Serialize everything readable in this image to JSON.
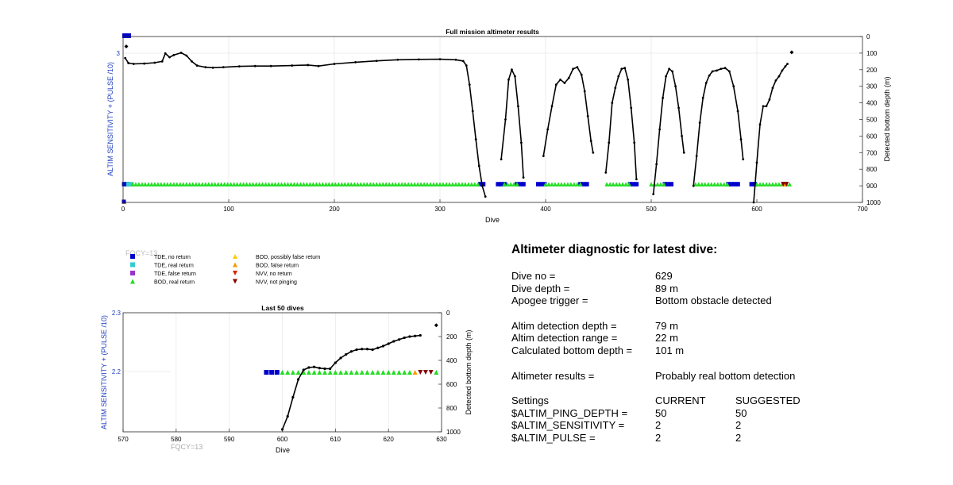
{
  "top_chart": {
    "title": "Full mission altimeter results",
    "xlabel": "Dive",
    "ylabel_left": "ALTIM SENSITIVITY + (PULSE /10)",
    "ylabel_right": "Detected bottom depth (m)",
    "left_tick": "3",
    "x_ticks": [
      "0",
      "100",
      "200",
      "300",
      "400",
      "500",
      "600",
      "700"
    ],
    "right_ticks": [
      "0",
      "100",
      "200",
      "300",
      "400",
      "500",
      "600",
      "700",
      "800",
      "900",
      "1000"
    ]
  },
  "bottom_chart": {
    "title": "Last 50 dives",
    "xlabel": "Dive",
    "ylabel_left": "ALTIM SENSITIVITY + (PULSE /10)",
    "ylabel_right": "Detected bottom depth (m)",
    "left_ticks": [
      "2.3",
      "2.2"
    ],
    "x_ticks": [
      "570",
      "580",
      "590",
      "600",
      "610",
      "620",
      "630"
    ],
    "right_ticks": [
      "0",
      "200",
      "400",
      "600",
      "800",
      "1000"
    ],
    "fqcy_label": "FQCY=13"
  },
  "legend": {
    "fqcy_label": "FQCY=13",
    "items": [
      {
        "label": "TDE, no return",
        "color": "#0000cc",
        "shape": "square"
      },
      {
        "label": "TDE, real return",
        "color": "#33cccc",
        "shape": "square"
      },
      {
        "label": "TDE, false return",
        "color": "#9933cc",
        "shape": "square"
      },
      {
        "label": "BOD, real return",
        "color": "#22dd22",
        "shape": "triangle-up"
      },
      {
        "label": "BOD, possibly false return",
        "color": "#ffcc00",
        "shape": "triangle-up"
      },
      {
        "label": "BOD, false return",
        "color": "#ff9900",
        "shape": "triangle-up"
      },
      {
        "label": "NVV, no return",
        "color": "#dd2200",
        "shape": "triangle-down"
      },
      {
        "label": "NVV, not pinging",
        "color": "#880000",
        "shape": "triangle-down"
      }
    ]
  },
  "diagnostic": {
    "title": "Altimeter diagnostic for latest dive:",
    "dive_no_label": "Dive no =",
    "dive_no": "629",
    "dive_depth_label": "Dive depth =",
    "dive_depth": "89 m",
    "apogee_label": "Apogee trigger =",
    "apogee": "Bottom obstacle detected",
    "det_depth_label": "Altim detection depth =",
    "det_depth": "79 m",
    "det_range_label": "Altim detection range =",
    "det_range": "22 m",
    "calc_depth_label": "Calculated bottom depth =",
    "calc_depth": "101 m",
    "results_label": "Altimeter results =",
    "results": "Probably real bottom detection",
    "settings_label": "Settings",
    "current_label": "CURRENT",
    "suggested_label": "SUGGESTED",
    "ping_label": "$ALTIM_PING_DEPTH =",
    "ping_current": "50",
    "ping_suggested": "50",
    "sens_label": "$ALTIM_SENSITIVITY =",
    "sens_current": "2",
    "sens_suggested": "2",
    "pulse_label": "$ALTIM_PULSE =",
    "pulse_current": "2",
    "pulse_suggested": "2"
  },
  "chart_data": [
    {
      "type": "scatter",
      "title": "Full mission altimeter results",
      "xlabel": "Dive",
      "ylabel": "ALTIM SENSITIVITY + (PULSE /10)",
      "ylabel_right": "Detected bottom depth (m)",
      "xlim": [
        0,
        700
      ],
      "ylim_right": [
        1000,
        0
      ],
      "series": [
        {
          "name": "",
          "kind": "depth-line",
          "color": "#000000",
          "points": [
            [
              2,
              130
            ],
            [
              5,
              160
            ],
            [
              10,
              165
            ],
            [
              20,
              163
            ],
            [
              30,
              158
            ],
            [
              37,
              150
            ],
            [
              40,
              102
            ],
            [
              44,
              125
            ],
            [
              48,
              112
            ],
            [
              55,
              98
            ],
            [
              60,
              115
            ],
            [
              65,
              150
            ],
            [
              70,
              175
            ],
            [
              78,
              185
            ],
            [
              85,
              188
            ],
            [
              95,
              185
            ],
            [
              110,
              180
            ],
            [
              125,
              178
            ],
            [
              140,
              178
            ],
            [
              160,
              175
            ],
            [
              175,
              172
            ],
            [
              185,
              178
            ],
            [
              200,
              165
            ],
            [
              220,
              155
            ],
            [
              240,
              147
            ],
            [
              260,
              140
            ],
            [
              280,
              138
            ],
            [
              300,
              137
            ],
            [
              315,
              140
            ],
            [
              322,
              148
            ],
            [
              325,
              175
            ],
            [
              328,
              290
            ],
            [
              331,
              450
            ],
            [
              334,
              620
            ],
            [
              337,
              780
            ],
            [
              340,
              900
            ],
            [
              343,
              965
            ]
          ]
        },
        {
          "name": "",
          "kind": "depth-line",
          "color": "#000000",
          "points": [
            [
              358,
              740
            ],
            [
              362,
              500
            ],
            [
              365,
              260
            ],
            [
              368,
              200
            ],
            [
              371,
              240
            ],
            [
              374,
              420
            ],
            [
              377,
              640
            ],
            [
              379,
              850
            ]
          ]
        },
        {
          "name": "",
          "kind": "depth-line",
          "color": "#000000",
          "points": [
            [
              398,
              720
            ],
            [
              402,
              560
            ],
            [
              406,
              420
            ],
            [
              410,
              290
            ],
            [
              414,
              260
            ],
            [
              418,
              280
            ],
            [
              422,
              250
            ],
            [
              426,
              195
            ],
            [
              430,
              185
            ],
            [
              434,
              230
            ],
            [
              437,
              330
            ],
            [
              440,
              480
            ],
            [
              443,
              630
            ],
            [
              445,
              700
            ]
          ]
        },
        {
          "name": "",
          "kind": "depth-line",
          "color": "#000000",
          "points": [
            [
              457,
              820
            ],
            [
              460,
              640
            ],
            [
              463,
              400
            ],
            [
              466,
              310
            ],
            [
              469,
              240
            ],
            [
              472,
              195
            ],
            [
              475,
              190
            ],
            [
              478,
              260
            ],
            [
              481,
              430
            ],
            [
              484,
              640
            ],
            [
              486,
              860
            ]
          ]
        },
        {
          "name": "",
          "kind": "depth-line",
          "color": "#000000",
          "points": [
            [
              502,
              950
            ],
            [
              505,
              770
            ],
            [
              508,
              560
            ],
            [
              511,
              370
            ],
            [
              514,
              240
            ],
            [
              517,
              195
            ],
            [
              520,
              210
            ],
            [
              523,
              300
            ],
            [
              526,
              430
            ],
            [
              529,
              600
            ],
            [
              531,
              700
            ]
          ]
        },
        {
          "name": "",
          "kind": "depth-line",
          "color": "#000000",
          "points": [
            [
              540,
              900
            ],
            [
              543,
              720
            ],
            [
              546,
              520
            ],
            [
              549,
              370
            ],
            [
              552,
              280
            ],
            [
              555,
              235
            ],
            [
              558,
              210
            ],
            [
              562,
              205
            ],
            [
              566,
              195
            ],
            [
              570,
              190
            ],
            [
              574,
              210
            ],
            [
              578,
              300
            ],
            [
              582,
              450
            ],
            [
              585,
              620
            ],
            [
              587,
              740
            ]
          ]
        },
        {
          "name": "",
          "kind": "depth-line",
          "color": "#000000",
          "points": [
            [
              597,
              1000
            ],
            [
              600,
              760
            ],
            [
              603,
              530
            ],
            [
              606,
              420
            ],
            [
              609,
              420
            ],
            [
              612,
              380
            ],
            [
              615,
              310
            ],
            [
              618,
              265
            ],
            [
              621,
              240
            ],
            [
              624,
              205
            ],
            [
              627,
              180
            ],
            [
              629,
              165
            ]
          ]
        },
        {
          "name": "",
          "kind": "depth-marker",
          "color": "#000000",
          "points": [
            [
              3,
              60
            ],
            [
              633,
              95
            ]
          ]
        },
        {
          "name": "TDE, no return",
          "kind": "marker-bands",
          "color": "#0000cc",
          "ranges": [
            [
              1,
              6
            ],
            [
              338,
              342
            ],
            [
              355,
              362
            ],
            [
              373,
              381
            ],
            [
              393,
              400
            ],
            [
              433,
              441
            ],
            [
              480,
              486
            ],
            [
              513,
              521
            ],
            [
              573,
              582
            ],
            [
              595,
              600
            ]
          ]
        },
        {
          "name": "TDE, real return",
          "kind": "marker-bands",
          "color": "#33cccc",
          "ranges": [
            [
              5,
              9
            ]
          ]
        },
        {
          "name": "BOD, real return",
          "kind": "marker-bands",
          "color": "#22dd22",
          "ranges": [
            [
              9,
              338
            ],
            [
              361,
              374
            ],
            [
              400,
              433
            ],
            [
              458,
              481
            ],
            [
              500,
              514
            ],
            [
              542,
              574
            ],
            [
              600,
              624
            ],
            [
              628,
              633
            ]
          ]
        },
        {
          "name": "BOD, possibly false return",
          "kind": "marker-points",
          "color": "#ffcc00",
          "points": [
            [
              1,
              0.3
            ]
          ]
        },
        {
          "name": "BOD, false return",
          "kind": "marker-points",
          "color": "#ff9900",
          "points": [
            [
              626,
              0.83
            ]
          ]
        },
        {
          "name": "NVV, not pinging",
          "kind": "marker-points",
          "color": "#880000",
          "points": [
            [
              625,
              0.83
            ],
            [
              628,
              0.83
            ]
          ]
        }
      ]
    },
    {
      "type": "scatter",
      "title": "Last 50 dives",
      "xlabel": "Dive",
      "ylabel": "ALTIM SENSITIVITY + (PULSE /10)",
      "ylabel_right": "Detected bottom depth (m)",
      "xlim": [
        570,
        630
      ],
      "ylim": [
        2.1,
        2.3
      ],
      "ylim_right": [
        1000,
        0
      ],
      "series": [
        {
          "name": "",
          "kind": "depth-line",
          "color": "#000000",
          "points": [
            [
              600,
              980
            ],
            [
              601,
              870
            ],
            [
              602,
              710
            ],
            [
              603,
              560
            ],
            [
              604,
              480
            ],
            [
              605,
              460
            ],
            [
              606,
              455
            ],
            [
              607,
              465
            ],
            [
              608,
              470
            ],
            [
              609,
              470
            ],
            [
              610,
              420
            ],
            [
              611,
              380
            ],
            [
              612,
              350
            ],
            [
              613,
              325
            ],
            [
              614,
              310
            ],
            [
              615,
              305
            ],
            [
              616,
              305
            ],
            [
              617,
              310
            ],
            [
              618,
              295
            ],
            [
              619,
              280
            ],
            [
              620,
              260
            ],
            [
              621,
              240
            ],
            [
              622,
              225
            ],
            [
              623,
              210
            ],
            [
              624,
              200
            ],
            [
              625,
              195
            ],
            [
              626,
              190
            ]
          ]
        },
        {
          "name": "",
          "kind": "depth-marker",
          "color": "#000000",
          "points": [
            [
              629,
              105
            ]
          ]
        },
        {
          "name": "TDE, no return",
          "kind": "marker-points",
          "color": "#0000cc",
          "points": [
            [
              597,
              2.2
            ],
            [
              598,
              2.2
            ],
            [
              599,
              2.2
            ]
          ]
        },
        {
          "name": "BOD, real return",
          "kind": "marker-points",
          "color": "#22dd22",
          "points": [
            [
              600,
              2.2
            ],
            [
              601,
              2.2
            ],
            [
              602,
              2.2
            ],
            [
              603,
              2.2
            ],
            [
              604,
              2.2
            ],
            [
              605,
              2.2
            ],
            [
              606,
              2.2
            ],
            [
              607,
              2.2
            ],
            [
              608,
              2.2
            ],
            [
              609,
              2.2
            ],
            [
              610,
              2.2
            ],
            [
              611,
              2.2
            ],
            [
              612,
              2.2
            ],
            [
              613,
              2.2
            ],
            [
              614,
              2.2
            ],
            [
              615,
              2.2
            ],
            [
              616,
              2.2
            ],
            [
              617,
              2.2
            ],
            [
              618,
              2.2
            ],
            [
              619,
              2.2
            ],
            [
              620,
              2.2
            ],
            [
              621,
              2.2
            ],
            [
              622,
              2.2
            ],
            [
              623,
              2.2
            ],
            [
              624,
              2.2
            ],
            [
              629,
              2.2
            ]
          ]
        },
        {
          "name": "BOD, false return",
          "kind": "marker-points",
          "color": "#ff9900",
          "points": [
            [
              625,
              2.2
            ]
          ]
        },
        {
          "name": "NVV, not pinging",
          "kind": "marker-points",
          "color": "#880000",
          "points": [
            [
              626,
              2.2
            ],
            [
              627,
              2.2
            ],
            [
              628,
              2.2
            ]
          ]
        }
      ]
    }
  ]
}
